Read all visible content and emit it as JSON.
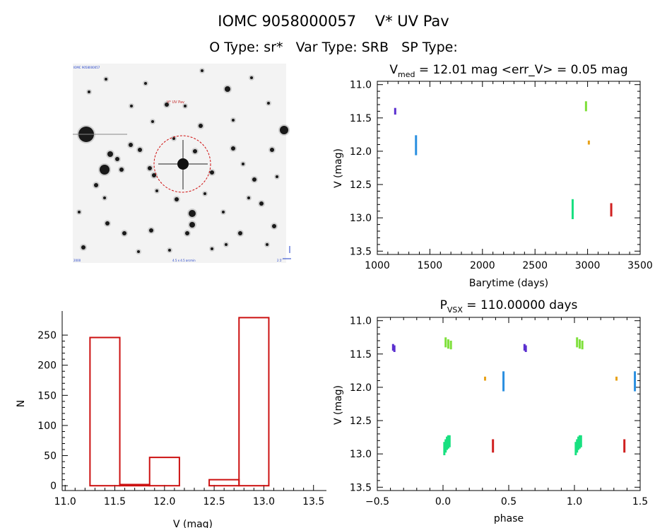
{
  "header": {
    "line1": "IOMC 9058000057    V* UV Pav",
    "line2": "O Type: sr*   Var Type: SRB   SP Type:"
  },
  "finder": {
    "target_label": "V* UV Pav",
    "corner_tl": "IOMC 9058000057",
    "corner_bl": "2000",
    "corner_bm": "4.5 x 4.5 arcmin",
    "corner_br": "2.5'"
  },
  "colors": {
    "hist": "#cc1111",
    "s1": "#5a2fcf",
    "s2": "#2a8fe0",
    "s3": "#18e080",
    "s4": "#7ee03a",
    "s5": "#e8a21a",
    "s6": "#d02020"
  },
  "chart_data": [
    {
      "id": "lightcurve",
      "type": "scatter",
      "title_main": "V",
      "title_sub": "med",
      "title_rest": " = 12.01 mag <err_V> = 0.05 mag",
      "xlabel": "Barytime (days)",
      "ylabel": "V (mag)",
      "xlim": [
        1000,
        3500
      ],
      "ylim": [
        13.55,
        10.95
      ],
      "xticks": [
        1000,
        1500,
        2000,
        2500,
        3000,
        3500
      ],
      "xtick_labels": [
        "1000",
        "1500",
        "2000",
        "2500",
        "3000",
        "3500"
      ],
      "yticks": [
        11.0,
        11.5,
        12.0,
        12.5,
        13.0,
        13.5
      ],
      "ytick_labels": [
        "11.0",
        "11.5",
        "12.0",
        "12.5",
        "13.0",
        "13.5"
      ],
      "series": [
        {
          "name": "s1",
          "color": "#5a2fcf",
          "segments": [
            {
              "x": 1170,
              "y1": 11.35,
              "y2": 11.45
            }
          ]
        },
        {
          "name": "s2",
          "color": "#2a8fe0",
          "segments": [
            {
              "x": 1368,
              "y1": 11.76,
              "y2": 12.06
            }
          ]
        },
        {
          "name": "s3",
          "color": "#18e080",
          "segments": [
            {
              "x": 2858,
              "y1": 12.72,
              "y2": 13.02
            }
          ]
        },
        {
          "name": "s4",
          "color": "#7ee03a",
          "segments": [
            {
              "x": 2985,
              "y1": 11.25,
              "y2": 11.4
            }
          ]
        },
        {
          "name": "s5",
          "color": "#e8a21a",
          "segments": [
            {
              "x": 3012,
              "y1": 11.84,
              "y2": 11.9
            }
          ]
        },
        {
          "name": "s6",
          "color": "#d02020",
          "segments": [
            {
              "x": 3225,
              "y1": 12.78,
              "y2": 12.98
            }
          ]
        }
      ]
    },
    {
      "id": "histogram",
      "type": "bar",
      "xlabel": "V (mag)",
      "ylabel": "N",
      "xlim": [
        10.97,
        13.63
      ],
      "ylim": [
        -8,
        290
      ],
      "xticks": [
        11.0,
        11.5,
        12.0,
        12.5,
        13.0,
        13.5
      ],
      "xtick_labels": [
        "11.0",
        "11.5",
        "12.0",
        "12.5",
        "13.0",
        "13.5"
      ],
      "yticks": [
        0,
        50,
        100,
        150,
        200,
        250
      ],
      "ytick_labels": [
        "0",
        "50",
        "100",
        "150",
        "200",
        "250"
      ],
      "bins": [
        {
          "x0": 11.25,
          "x1": 11.55,
          "count": 246
        },
        {
          "x0": 11.55,
          "x1": 11.85,
          "count": 2
        },
        {
          "x0": 11.85,
          "x1": 12.15,
          "count": 47
        },
        {
          "x0": 12.15,
          "x1": 12.45,
          "count": 0
        },
        {
          "x0": 12.45,
          "x1": 12.75,
          "count": 10
        },
        {
          "x0": 12.75,
          "x1": 13.05,
          "count": 279
        }
      ]
    },
    {
      "id": "phased",
      "type": "scatter",
      "title_main": "P",
      "title_sub": "VSX",
      "title_rest": " = 110.00000 days",
      "xlabel": "phase",
      "ylabel": "V (mag)",
      "xlim": [
        -0.5,
        1.5
      ],
      "ylim": [
        13.55,
        10.95
      ],
      "xticks": [
        -0.5,
        0.0,
        0.5,
        1.0,
        1.5
      ],
      "xtick_labels": [
        "−0.5",
        "0.0",
        "0.5",
        "1.0",
        "1.5"
      ],
      "yticks": [
        11.0,
        11.5,
        12.0,
        12.5,
        13.0,
        13.5
      ],
      "ytick_labels": [
        "11.0",
        "11.5",
        "12.0",
        "12.5",
        "13.0",
        "13.5"
      ],
      "series": [
        {
          "name": "s1",
          "color": "#5a2fcf",
          "segments": [
            {
              "x": -0.38,
              "y1": 11.35,
              "y2": 11.45
            },
            {
              "x": -0.37,
              "y1": 11.37,
              "y2": 11.47
            },
            {
              "x": 0.62,
              "y1": 11.35,
              "y2": 11.45
            },
            {
              "x": 0.63,
              "y1": 11.37,
              "y2": 11.47
            }
          ]
        },
        {
          "name": "s2",
          "color": "#2a8fe0",
          "segments": [
            {
              "x": 0.46,
              "y1": 11.76,
              "y2": 12.06
            },
            {
              "x": 1.46,
              "y1": 11.76,
              "y2": 12.06
            }
          ]
        },
        {
          "name": "s3",
          "color": "#18e080",
          "segments": [
            {
              "x": 0.01,
              "y1": 12.82,
              "y2": 13.02
            },
            {
              "x": 0.02,
              "y1": 12.78,
              "y2": 12.98
            },
            {
              "x": 0.03,
              "y1": 12.74,
              "y2": 12.94
            },
            {
              "x": 0.04,
              "y1": 12.72,
              "y2": 12.92
            },
            {
              "x": 0.05,
              "y1": 12.72,
              "y2": 12.9
            },
            {
              "x": 1.01,
              "y1": 12.82,
              "y2": 13.02
            },
            {
              "x": 1.02,
              "y1": 12.78,
              "y2": 12.98
            },
            {
              "x": 1.03,
              "y1": 12.74,
              "y2": 12.94
            },
            {
              "x": 1.04,
              "y1": 12.72,
              "y2": 12.92
            },
            {
              "x": 1.05,
              "y1": 12.72,
              "y2": 12.9
            }
          ]
        },
        {
          "name": "s4",
          "color": "#7ee03a",
          "segments": [
            {
              "x": 0.02,
              "y1": 11.25,
              "y2": 11.4
            },
            {
              "x": 0.04,
              "y1": 11.28,
              "y2": 11.42
            },
            {
              "x": 0.06,
              "y1": 11.3,
              "y2": 11.43
            },
            {
              "x": 1.02,
              "y1": 11.25,
              "y2": 11.4
            },
            {
              "x": 1.04,
              "y1": 11.28,
              "y2": 11.42
            },
            {
              "x": 1.06,
              "y1": 11.3,
              "y2": 11.43
            }
          ]
        },
        {
          "name": "s5",
          "color": "#e8a21a",
          "segments": [
            {
              "x": 0.32,
              "y1": 11.84,
              "y2": 11.9
            },
            {
              "x": 1.32,
              "y1": 11.84,
              "y2": 11.9
            }
          ]
        },
        {
          "name": "s6",
          "color": "#d02020",
          "segments": [
            {
              "x": 0.38,
              "y1": 12.78,
              "y2": 12.98
            },
            {
              "x": 1.38,
              "y1": 12.78,
              "y2": 12.98
            }
          ]
        }
      ]
    }
  ]
}
